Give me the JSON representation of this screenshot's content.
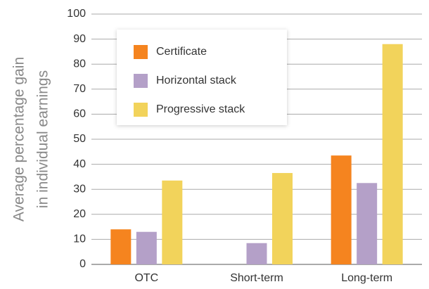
{
  "chart_data": {
    "type": "bar",
    "ylabel": [
      "Average percentage gain",
      "in individual earnings"
    ],
    "categories": [
      "OTC",
      "Short-term",
      "Long-term"
    ],
    "series": [
      {
        "name": "Certificate",
        "color": "#f5841f",
        "values": [
          14,
          null,
          43.5
        ]
      },
      {
        "name": "Horizontal stack",
        "color": "#b4a0c8",
        "values": [
          13,
          8.5,
          32.5
        ]
      },
      {
        "name": "Progressive stack",
        "color": "#f2d35b",
        "values": [
          33.5,
          36.5,
          88
        ]
      }
    ],
    "ylim": [
      0,
      100
    ],
    "yticks": [
      0,
      10,
      20,
      30,
      40,
      50,
      60,
      70,
      80,
      90,
      100
    ],
    "grid": true,
    "legend": "upper left"
  }
}
